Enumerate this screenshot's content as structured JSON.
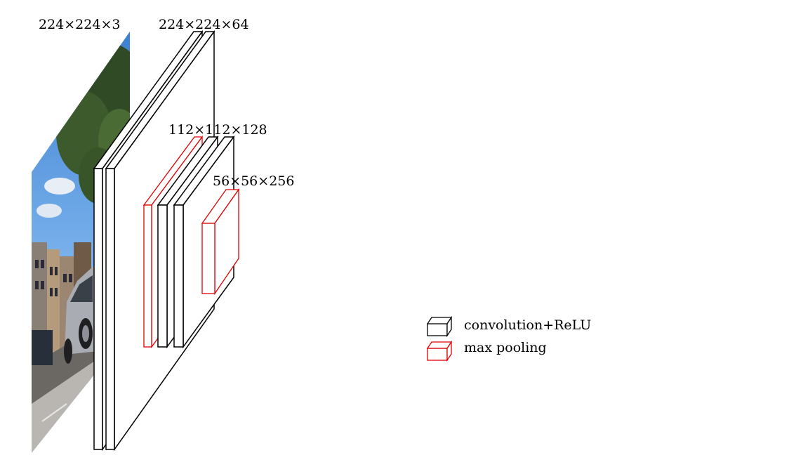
{
  "labels": {
    "input": "224×224×3",
    "conv1": "224×224×64",
    "conv2": "112×112×128",
    "conv3": "56×56×256"
  },
  "legend": {
    "conv": {
      "label": "convolution+ReLU",
      "color": "#000000"
    },
    "pool": {
      "label": "max pooling",
      "color": "#e00000"
    }
  },
  "image": {
    "subject": "street-photo"
  }
}
